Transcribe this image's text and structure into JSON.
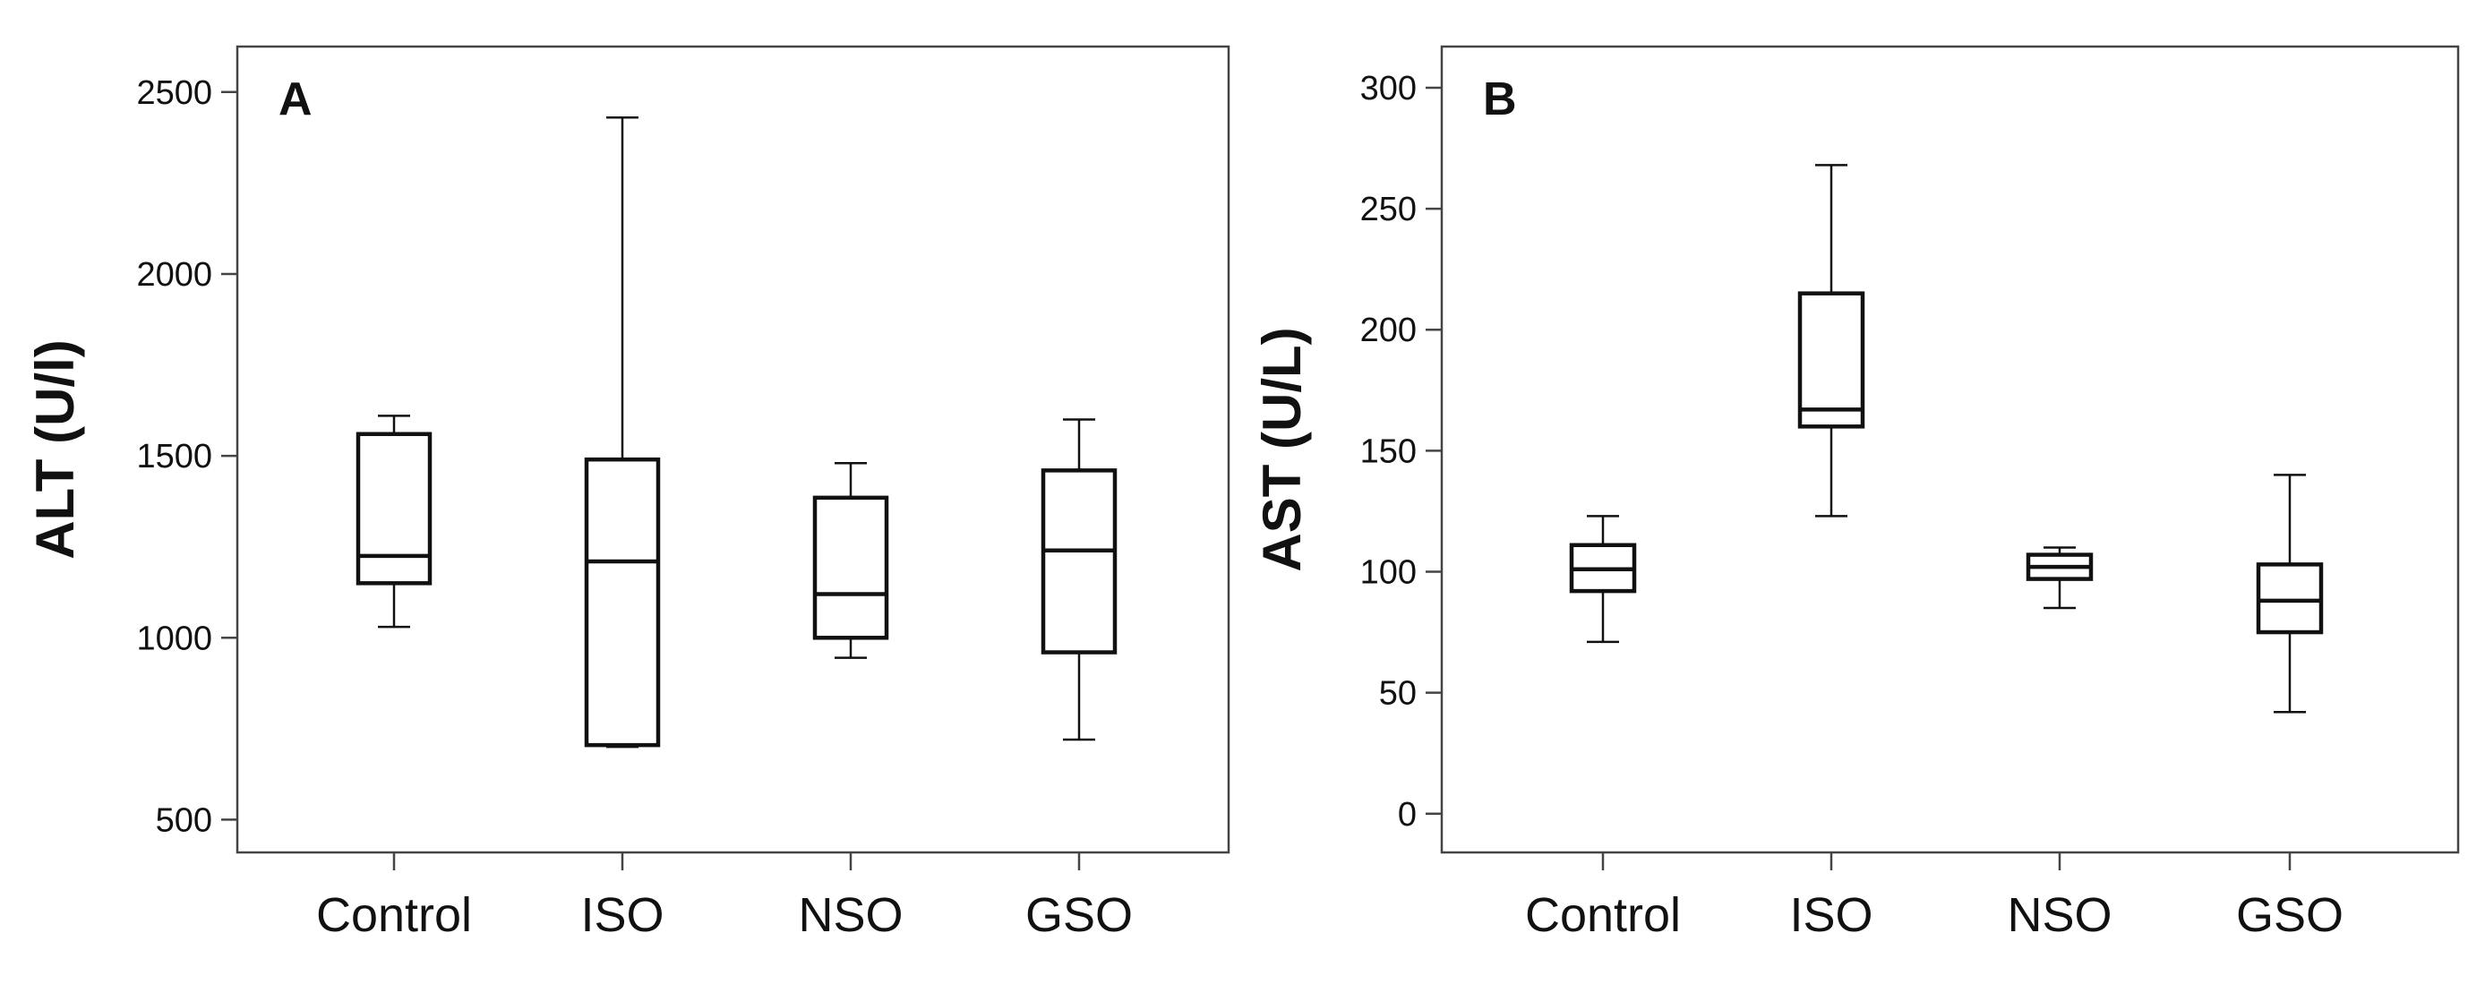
{
  "chart_data": [
    {
      "type": "boxplot",
      "panel_label": "A",
      "ylabel": "ALT (U/l)",
      "xlabel": "",
      "ylim": [
        410,
        2625
      ],
      "yticks": [
        500,
        1000,
        1500,
        2000,
        2500
      ],
      "grid": false,
      "categories": [
        "Control",
        "ISO",
        "NSO",
        "GSO"
      ],
      "boxes": [
        {
          "min": 1030,
          "q1": 1150,
          "median": 1225,
          "q3": 1560,
          "max": 1610
        },
        {
          "min": 700,
          "q1": 705,
          "median": 1210,
          "q3": 1490,
          "max": 2430
        },
        {
          "min": 945,
          "q1": 1000,
          "median": 1120,
          "q3": 1385,
          "max": 1480
        },
        {
          "min": 720,
          "q1": 960,
          "median": 1240,
          "q3": 1460,
          "max": 1600
        }
      ]
    },
    {
      "type": "boxplot",
      "panel_label": "B",
      "ylabel": "AST (U/L)",
      "xlabel": "",
      "ylim": [
        -16,
        317
      ],
      "yticks": [
        0,
        50,
        100,
        150,
        200,
        250,
        300
      ],
      "grid": false,
      "categories": [
        "Control",
        "ISO",
        "NSO",
        "GSO"
      ],
      "boxes": [
        {
          "min": 71,
          "q1": 92,
          "median": 101,
          "q3": 111,
          "max": 123
        },
        {
          "min": 123,
          "q1": 160,
          "median": 167,
          "q3": 215,
          "max": 268
        },
        {
          "min": 85,
          "q1": 97,
          "median": 102,
          "q3": 107,
          "max": 110
        },
        {
          "min": 42,
          "q1": 75,
          "median": 88,
          "q3": 103,
          "max": 140
        }
      ]
    }
  ]
}
